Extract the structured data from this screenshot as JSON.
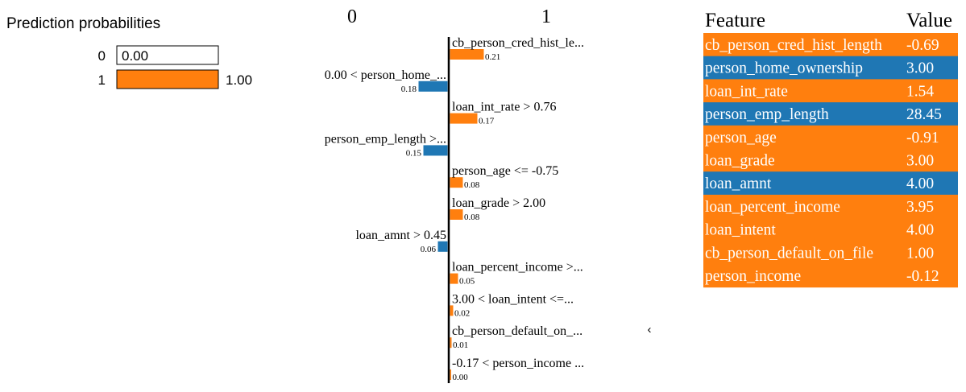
{
  "colors": {
    "class0": "#1f77b4",
    "class1": "#ff7f0e",
    "text": "#000000",
    "tableText": "#ffffff",
    "muted": "#aaaaaa"
  },
  "chart_data": [
    {
      "type": "bar",
      "orientation": "horizontal",
      "title": "Prediction probabilities",
      "categories": [
        "0",
        "1"
      ],
      "values": [
        0.0,
        1.0
      ],
      "value_labels": [
        "0.00",
        "1.00"
      ],
      "xlim": [
        0,
        1
      ]
    },
    {
      "type": "bar",
      "orientation": "horizontal-diverging",
      "class_labels": {
        "negative": "0",
        "positive": "1"
      },
      "max_abs": 0.21,
      "bars": [
        {
          "label": "cb_person_cred_hist_le...",
          "value": 0.21,
          "value_label": "0.21",
          "side": "positive"
        },
        {
          "label": "0.00 < person_home_...",
          "value": 0.18,
          "value_label": "0.18",
          "side": "negative"
        },
        {
          "label": "loan_int_rate > 0.76",
          "value": 0.17,
          "value_label": "0.17",
          "side": "positive"
        },
        {
          "label": "person_emp_length >...",
          "value": 0.15,
          "value_label": "0.15",
          "side": "negative"
        },
        {
          "label": "person_age <= -0.75",
          "value": 0.08,
          "value_label": "0.08",
          "side": "positive"
        },
        {
          "label": "loan_grade > 2.00",
          "value": 0.08,
          "value_label": "0.08",
          "side": "positive"
        },
        {
          "label": "loan_amnt > 0.45",
          "value": 0.06,
          "value_label": "0.06",
          "side": "negative"
        },
        {
          "label": "loan_percent_income >...",
          "value": 0.05,
          "value_label": "0.05",
          "side": "positive"
        },
        {
          "label": "3.00 < loan_intent <=...",
          "value": 0.02,
          "value_label": "0.02",
          "side": "positive"
        },
        {
          "label": "cb_person_default_on_...",
          "value": 0.01,
          "value_label": "0.01",
          "side": "positive"
        },
        {
          "label": "-0.17 < person_income ...",
          "value": 0.0,
          "value_label": "0.00",
          "side": "positive"
        }
      ],
      "marker": "‹"
    },
    {
      "type": "table",
      "columns": [
        "Feature",
        "Value"
      ],
      "rows": [
        {
          "feature": "cb_person_cred_hist_length",
          "value": "-0.69",
          "side": "positive"
        },
        {
          "feature": "person_home_ownership",
          "value": "3.00",
          "side": "negative"
        },
        {
          "feature": "loan_int_rate",
          "value": "1.54",
          "side": "positive"
        },
        {
          "feature": "person_emp_length",
          "value": "28.45",
          "side": "negative"
        },
        {
          "feature": "person_age",
          "value": "-0.91",
          "side": "positive"
        },
        {
          "feature": "loan_grade",
          "value": "3.00",
          "side": "positive"
        },
        {
          "feature": "loan_amnt",
          "value": "4.00",
          "side": "negative"
        },
        {
          "feature": "loan_percent_income",
          "value": "3.95",
          "side": "positive"
        },
        {
          "feature": "loan_intent",
          "value": "4.00",
          "side": "positive"
        },
        {
          "feature": "cb_person_default_on_file",
          "value": "1.00",
          "side": "positive"
        },
        {
          "feature": "person_income",
          "value": "-0.12",
          "side": "positive"
        }
      ]
    }
  ]
}
